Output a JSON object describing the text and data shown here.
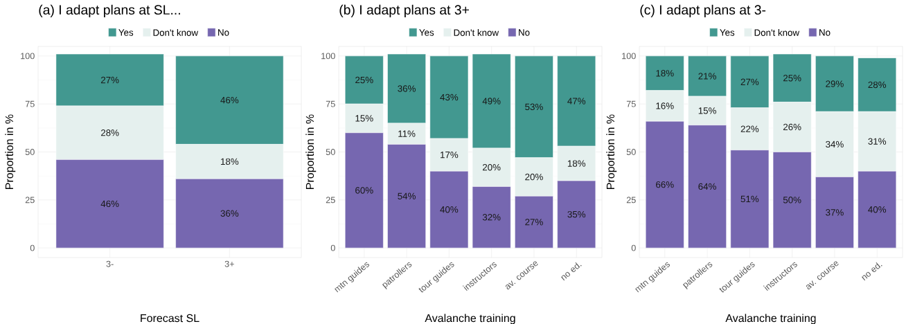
{
  "chart_data": [
    {
      "type": "bar",
      "title": "(a) I adapt plans at SL...",
      "xlabel": "Forecast SL",
      "ylabel": "Proportion in %",
      "categories": [
        "3-",
        "3+"
      ],
      "stacked": true,
      "ylim": [
        -5,
        105
      ],
      "yticks": [
        0,
        25,
        50,
        75,
        100
      ],
      "grid": true,
      "legend": "top",
      "data_labels": true,
      "series": [
        {
          "name": "No",
          "color": "#7667b0",
          "values": [
            46,
            36
          ],
          "value_labels": [
            "46%",
            "36%"
          ]
        },
        {
          "name": "Don't know",
          "color": "#e5f0ee",
          "values": [
            28,
            18
          ],
          "value_labels": [
            "28%",
            "18%"
          ]
        },
        {
          "name": "Yes",
          "color": "#429890",
          "values": [
            27,
            46
          ],
          "value_labels": [
            "27%",
            "46%"
          ]
        }
      ]
    },
    {
      "type": "bar",
      "title": "(b) I adapt plans at 3+",
      "xlabel": "Avalanche training",
      "ylabel": "Proportion in %",
      "categories": [
        "mtn guides",
        "patrollers",
        "tour guides",
        "instructors",
        "av. course",
        "no ed."
      ],
      "stacked": true,
      "ylim": [
        -5,
        105
      ],
      "yticks": [
        0,
        25,
        50,
        75,
        100
      ],
      "grid": true,
      "legend": "top",
      "data_labels": true,
      "series": [
        {
          "name": "No",
          "color": "#7667b0",
          "values": [
            60,
            54,
            40,
            32,
            27,
            35
          ],
          "value_labels": [
            "60%",
            "54%",
            "40%",
            "32%",
            "27%",
            "35%"
          ]
        },
        {
          "name": "Don't know",
          "color": "#e5f0ee",
          "values": [
            15,
            11,
            17,
            20,
            20,
            18
          ],
          "value_labels": [
            "15%",
            "11%",
            "17%",
            "20%",
            "20%",
            "18%"
          ]
        },
        {
          "name": "Yes",
          "color": "#429890",
          "values": [
            25,
            36,
            43,
            49,
            53,
            47
          ],
          "value_labels": [
            "25%",
            "36%",
            "43%",
            "49%",
            "53%",
            "47%"
          ]
        }
      ]
    },
    {
      "type": "bar",
      "title": "(c) I adapt plans at 3-",
      "xlabel": "Avalanche training",
      "ylabel": "Proportion in %",
      "categories": [
        "mtn guides",
        "patrollers",
        "tour guides",
        "instructors",
        "av. course",
        "no ed."
      ],
      "stacked": true,
      "ylim": [
        -5,
        105
      ],
      "yticks": [
        0,
        25,
        50,
        75,
        100
      ],
      "grid": true,
      "legend": "top",
      "data_labels": true,
      "series": [
        {
          "name": "No",
          "color": "#7667b0",
          "values": [
            66,
            64,
            51,
            50,
            37,
            40
          ],
          "value_labels": [
            "66%",
            "64%",
            "51%",
            "50%",
            "37%",
            "40%"
          ]
        },
        {
          "name": "Don't know",
          "color": "#e5f0ee",
          "values": [
            16,
            15,
            22,
            26,
            34,
            31
          ],
          "value_labels": [
            "16%",
            "15%",
            "22%",
            "26%",
            "34%",
            "31%"
          ]
        },
        {
          "name": "Yes",
          "color": "#429890",
          "values": [
            18,
            21,
            27,
            25,
            29,
            28
          ],
          "value_labels": [
            "18%",
            "21%",
            "27%",
            "25%",
            "29%",
            "28%"
          ]
        }
      ]
    }
  ]
}
